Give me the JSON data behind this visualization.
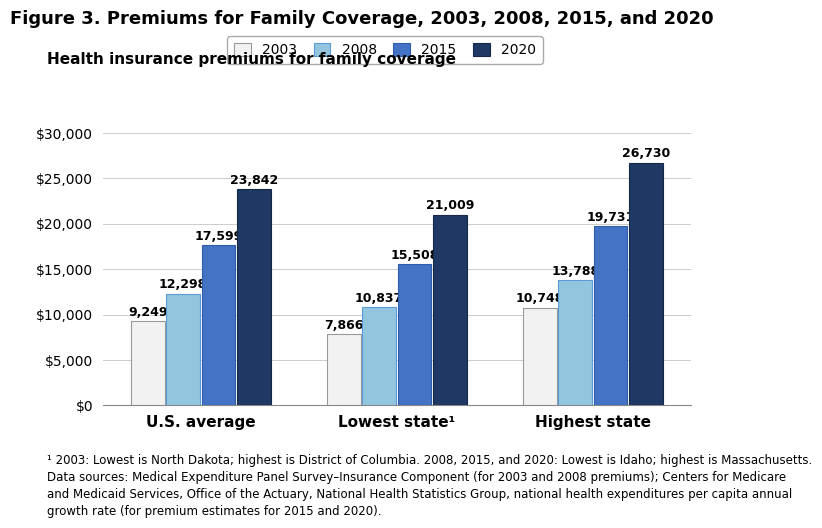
{
  "title": "Figure 3. Premiums for Family Coverage, 2003, 2008, 2015, and 2020",
  "subtitle": "Health insurance premiums for family coverage",
  "categories_keys": [
    "U.S. average",
    "Lowest state",
    "Highest state"
  ],
  "categories_labels": [
    "U.S. average",
    "Lowest state¹",
    "Highest state"
  ],
  "years": [
    "2003",
    "2008",
    "2015",
    "2020"
  ],
  "values": {
    "U.S. average": [
      9249,
      12298,
      17599,
      23842
    ],
    "Lowest state": [
      7866,
      10837,
      15508,
      21009
    ],
    "Highest state": [
      10748,
      13788,
      19731,
      26730
    ]
  },
  "bar_colors": [
    "#f2f2f2",
    "#92c5de",
    "#4472c4",
    "#1f3864"
  ],
  "bar_edge_colors": [
    "#999999",
    "#5b9bd5",
    "#2e5eaa",
    "#162847"
  ],
  "ylim": [
    0,
    30000
  ],
  "yticks": [
    0,
    5000,
    10000,
    15000,
    20000,
    25000,
    30000
  ],
  "ytick_labels": [
    "$0",
    "$5,000",
    "$10,000",
    "$15,000",
    "$20,000",
    "$25,000",
    "$30,000"
  ],
  "footnote": "¹ 2003: Lowest is North Dakota; highest is District of Columbia. 2008, 2015, and 2020: Lowest is Idaho; highest is Massachusetts.\nData sources: Medical Expenditure Panel Survey–Insurance Component (for 2003 and 2008 premiums); Centers for Medicare\nand Medicaid Services, Office of the Actuary, National Health Statistics Group, national health expenditures per capita annual\ngrowth rate (for premium estimates for 2015 and 2020).",
  "background_color": "#ffffff",
  "title_fontsize": 13,
  "subtitle_fontsize": 11,
  "xlabel_fontsize": 11,
  "tick_fontsize": 10,
  "legend_fontsize": 10,
  "annotation_fontsize": 9,
  "footnote_fontsize": 8.5
}
